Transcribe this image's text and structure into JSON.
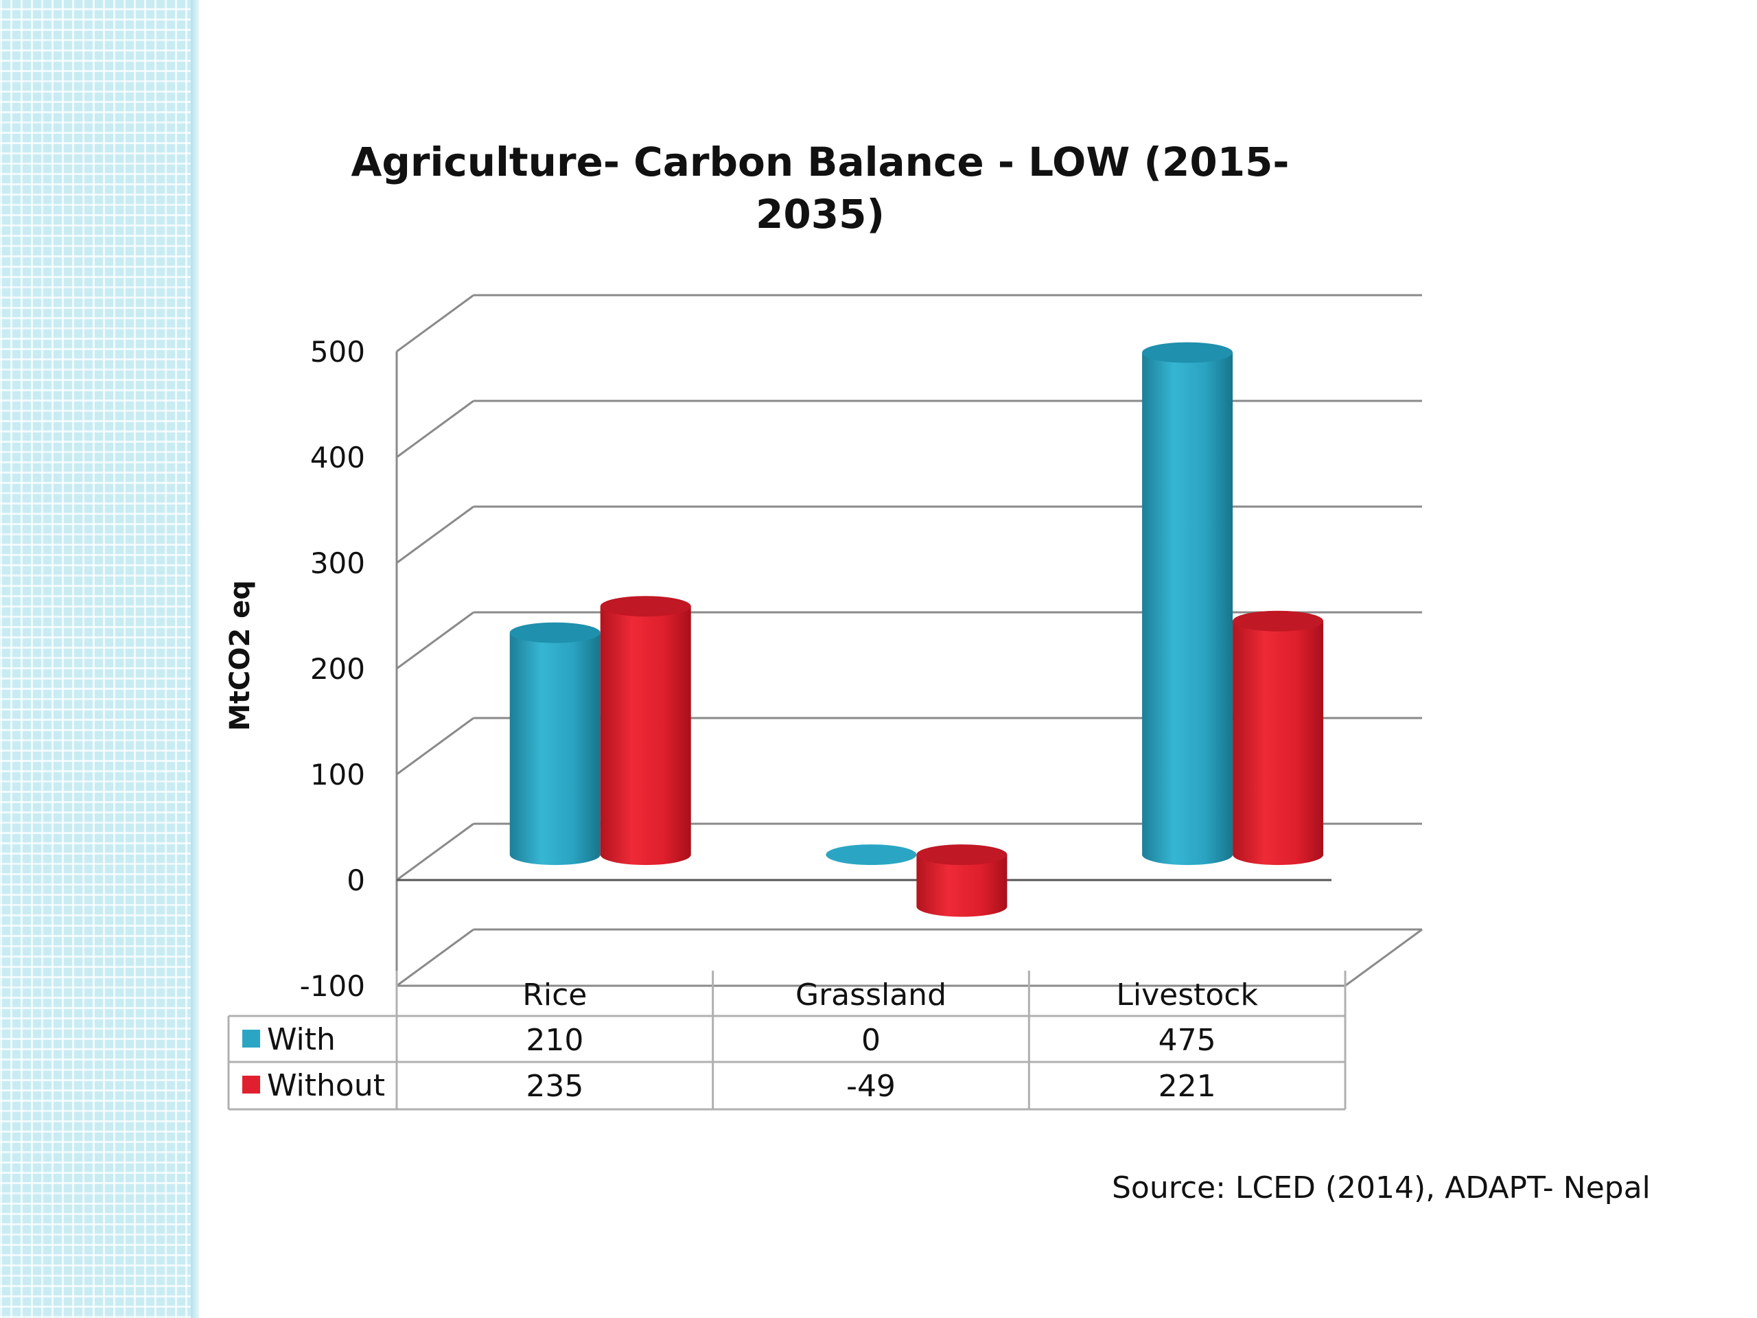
{
  "chart_data": {
    "type": "bar",
    "title": "Agriculture- Carbon Balance - LOW  (2015-2035)",
    "title_lines": [
      "Agriculture- Carbon Balance - LOW  (2015-",
      "2035)"
    ],
    "ylabel": "MtCO2 eq",
    "xlabel": "",
    "categories": [
      "Rice",
      "Grassland",
      "Livestock"
    ],
    "series": [
      {
        "name": "With",
        "values": [
          210,
          0,
          475
        ],
        "color": "#2aa6c4"
      },
      {
        "name": "Without",
        "values": [
          235,
          -49,
          221
        ],
        "color": "#e0202e"
      }
    ],
    "ylim": [
      -100,
      500
    ],
    "yticks": [
      "500",
      "400",
      "300",
      "200",
      "100",
      "0",
      "-100"
    ],
    "grid": true,
    "legend": "data-table",
    "three_d": true,
    "table_values": [
      [
        "210",
        "0",
        "475"
      ],
      [
        "235",
        "-49",
        "221"
      ]
    ]
  },
  "source": "Source: LCED (2014), ADAPT- Nepal"
}
